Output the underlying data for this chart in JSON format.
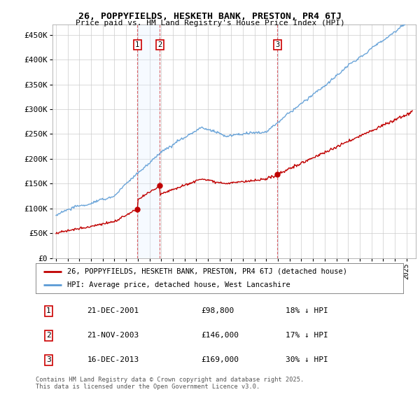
{
  "title": "26, POPPYFIELDS, HESKETH BANK, PRESTON, PR4 6TJ",
  "subtitle": "Price paid vs. HM Land Registry's House Price Index (HPI)",
  "ylabel_ticks": [
    "£0",
    "£50K",
    "£100K",
    "£150K",
    "£200K",
    "£250K",
    "£300K",
    "£350K",
    "£400K",
    "£450K"
  ],
  "ylim": [
    0,
    470000
  ],
  "yticks": [
    0,
    50000,
    100000,
    150000,
    200000,
    250000,
    300000,
    350000,
    400000,
    450000
  ],
  "legend_entries": [
    "26, POPPYFIELDS, HESKETH BANK, PRESTON, PR4 6TJ (detached house)",
    "HPI: Average price, detached house, West Lancashire"
  ],
  "transactions": [
    {
      "num": 1,
      "date": "21-DEC-2001",
      "price": "£98,800",
      "note": "18% ↓ HPI",
      "year": 2001.97,
      "value": 98800
    },
    {
      "num": 2,
      "date": "21-NOV-2003",
      "price": "£146,000",
      "note": "17% ↓ HPI",
      "year": 2003.89,
      "value": 146000
    },
    {
      "num": 3,
      "date": "16-DEC-2013",
      "price": "£169,000",
      "note": "30% ↓ HPI",
      "year": 2013.96,
      "value": 169000
    }
  ],
  "footnote": "Contains HM Land Registry data © Crown copyright and database right 2025.\nThis data is licensed under the Open Government Licence v3.0.",
  "hpi_color": "#5b9bd5",
  "price_color": "#c00000",
  "shade_color": "#ddeeff",
  "transaction_line_color": "#cc0000",
  "background_color": "#ffffff",
  "grid_color": "#cccccc"
}
